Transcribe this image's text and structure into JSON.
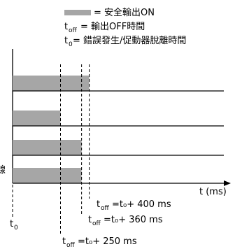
{
  "colors": {
    "on_bar": "#a6a6a6",
    "line": "#000000",
    "background": "#ffffff"
  },
  "legend": {
    "on_label": "= 安全輸出ON",
    "toff_symbol": "t",
    "toff_subscript": "off",
    "toff_text": "= 輸出OFF時間",
    "t0_symbol": "t",
    "t0_subscript": "0",
    "t0_text": " = 錯誤發生/促動器脫離時間"
  },
  "axis": {
    "x_label": "t (ms)",
    "left_fragment": "線"
  },
  "markers": {
    "t0": {
      "symbol": "t",
      "subscript": "0"
    },
    "toff_400": {
      "symbol": "t",
      "subscript": "off",
      "text": "=t₀+ 400 ms"
    },
    "toff_360": {
      "symbol": "t",
      "subscript": "off",
      "text": "=t₀+ 360 ms"
    },
    "toff_250": {
      "symbol": "t",
      "subscript": "off",
      "text": "=t₀+ 250 ms"
    }
  },
  "chart_data": {
    "type": "timing",
    "x_unit": "ms",
    "x_marks": [
      0,
      250,
      360,
      400
    ],
    "rows": [
      {
        "on_end": 400
      },
      {
        "on_end": 250
      },
      {
        "on_end": 360
      },
      {
        "on_end": 360
      }
    ]
  }
}
